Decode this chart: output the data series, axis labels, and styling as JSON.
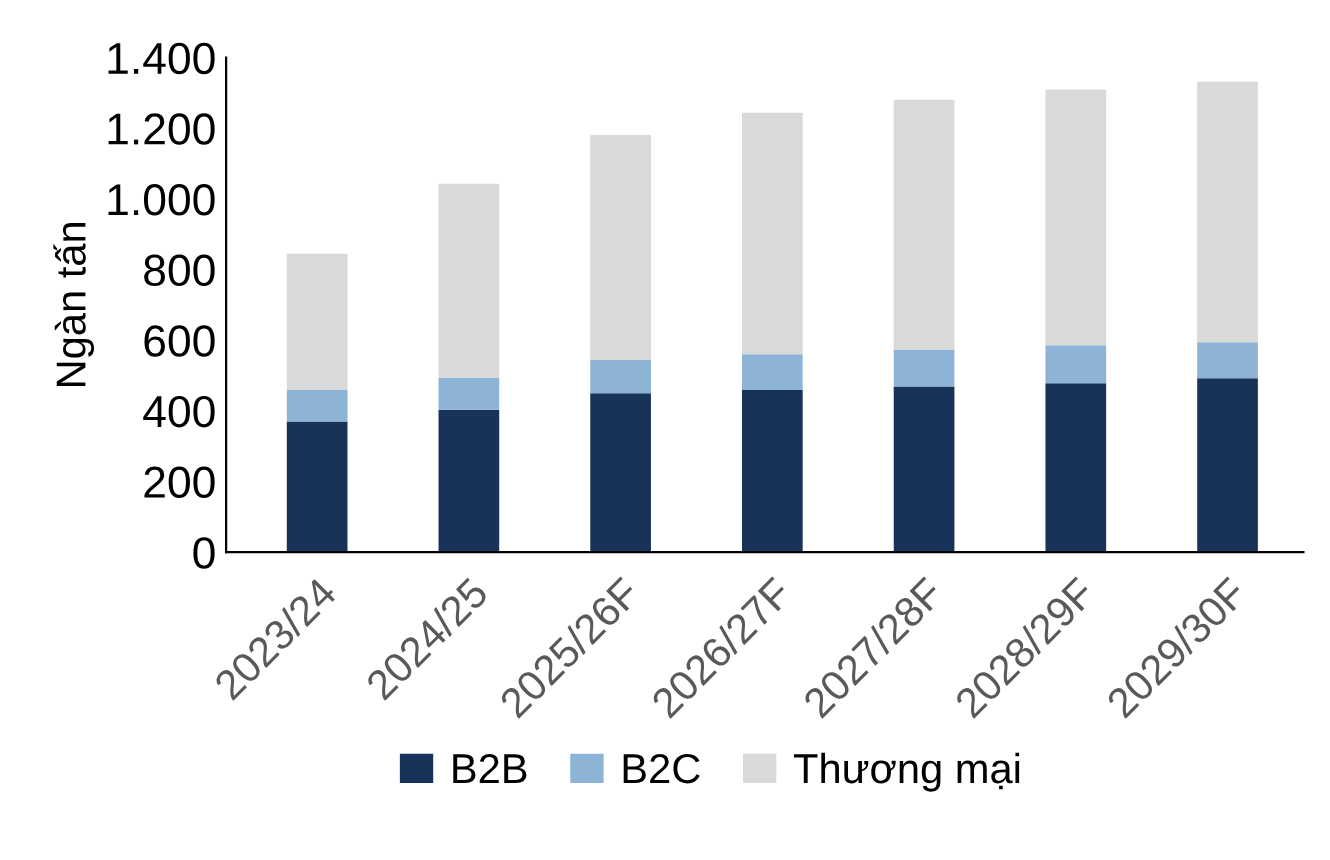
{
  "chart_data": {
    "type": "bar",
    "stacked": true,
    "ylabel": "Ngàn tấn",
    "categories": [
      "2023/24",
      "2024/25",
      "2025/26F",
      "2026/27F",
      "2027/28F",
      "2028/29F",
      "2029/30F"
    ],
    "series": [
      {
        "name": "B2B",
        "color": "#17335a",
        "values": [
          370,
          403,
          450,
          459,
          469,
          478,
          492
        ]
      },
      {
        "name": "B2C",
        "color": "#8db3d6",
        "values": [
          89,
          90,
          94,
          101,
          105,
          108,
          102
        ]
      },
      {
        "name": "Thương mại",
        "color": "#d9d9d9",
        "values": [
          386,
          550,
          637,
          684,
          707,
          724,
          738
        ]
      }
    ],
    "ylim": [
      0,
      1400
    ],
    "yticks": [
      0,
      200,
      400,
      600,
      800,
      {
        "value": 1000,
        "label": "1.000"
      },
      {
        "value": 1200,
        "label": "1.200"
      },
      {
        "value": 1400,
        "label": "1.400"
      }
    ],
    "grid": false,
    "legend": "bottom"
  }
}
